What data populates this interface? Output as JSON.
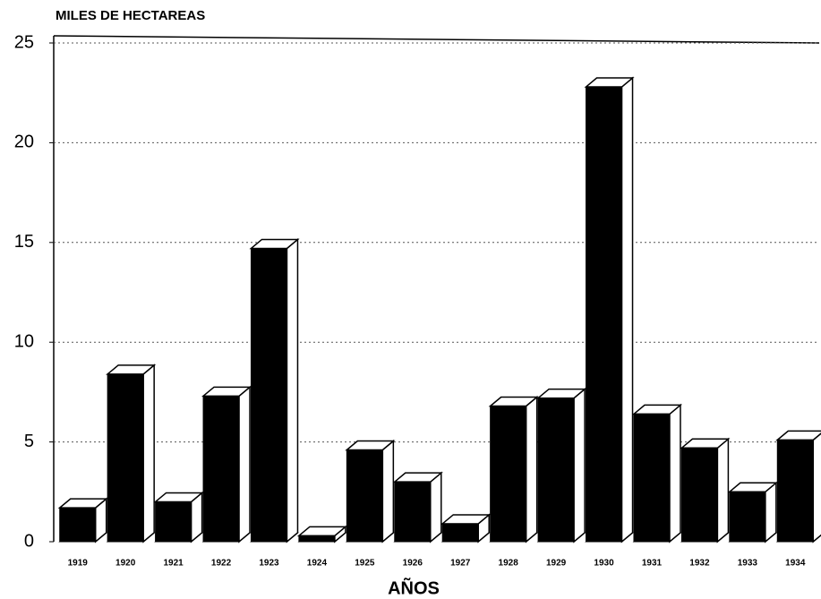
{
  "chart_data": {
    "type": "bar",
    "title": "MILES DE HECTAREAS",
    "x_label": "AÑOS",
    "categories": [
      "1919",
      "1920",
      "1921",
      "1922",
      "1923",
      "1924",
      "1925",
      "1926",
      "1927",
      "1928",
      "1929",
      "1930",
      "1931",
      "1932",
      "1933",
      "1934"
    ],
    "values": [
      1.7,
      8.4,
      2.0,
      7.3,
      14.7,
      0.3,
      4.6,
      3.0,
      0.9,
      6.8,
      7.2,
      22.8,
      6.4,
      4.7,
      2.5,
      5.1
    ],
    "color": "#000000",
    "ylim": [
      0,
      25
    ],
    "yticks": [
      0,
      5,
      10,
      15,
      20,
      25
    ],
    "grid": true
  }
}
